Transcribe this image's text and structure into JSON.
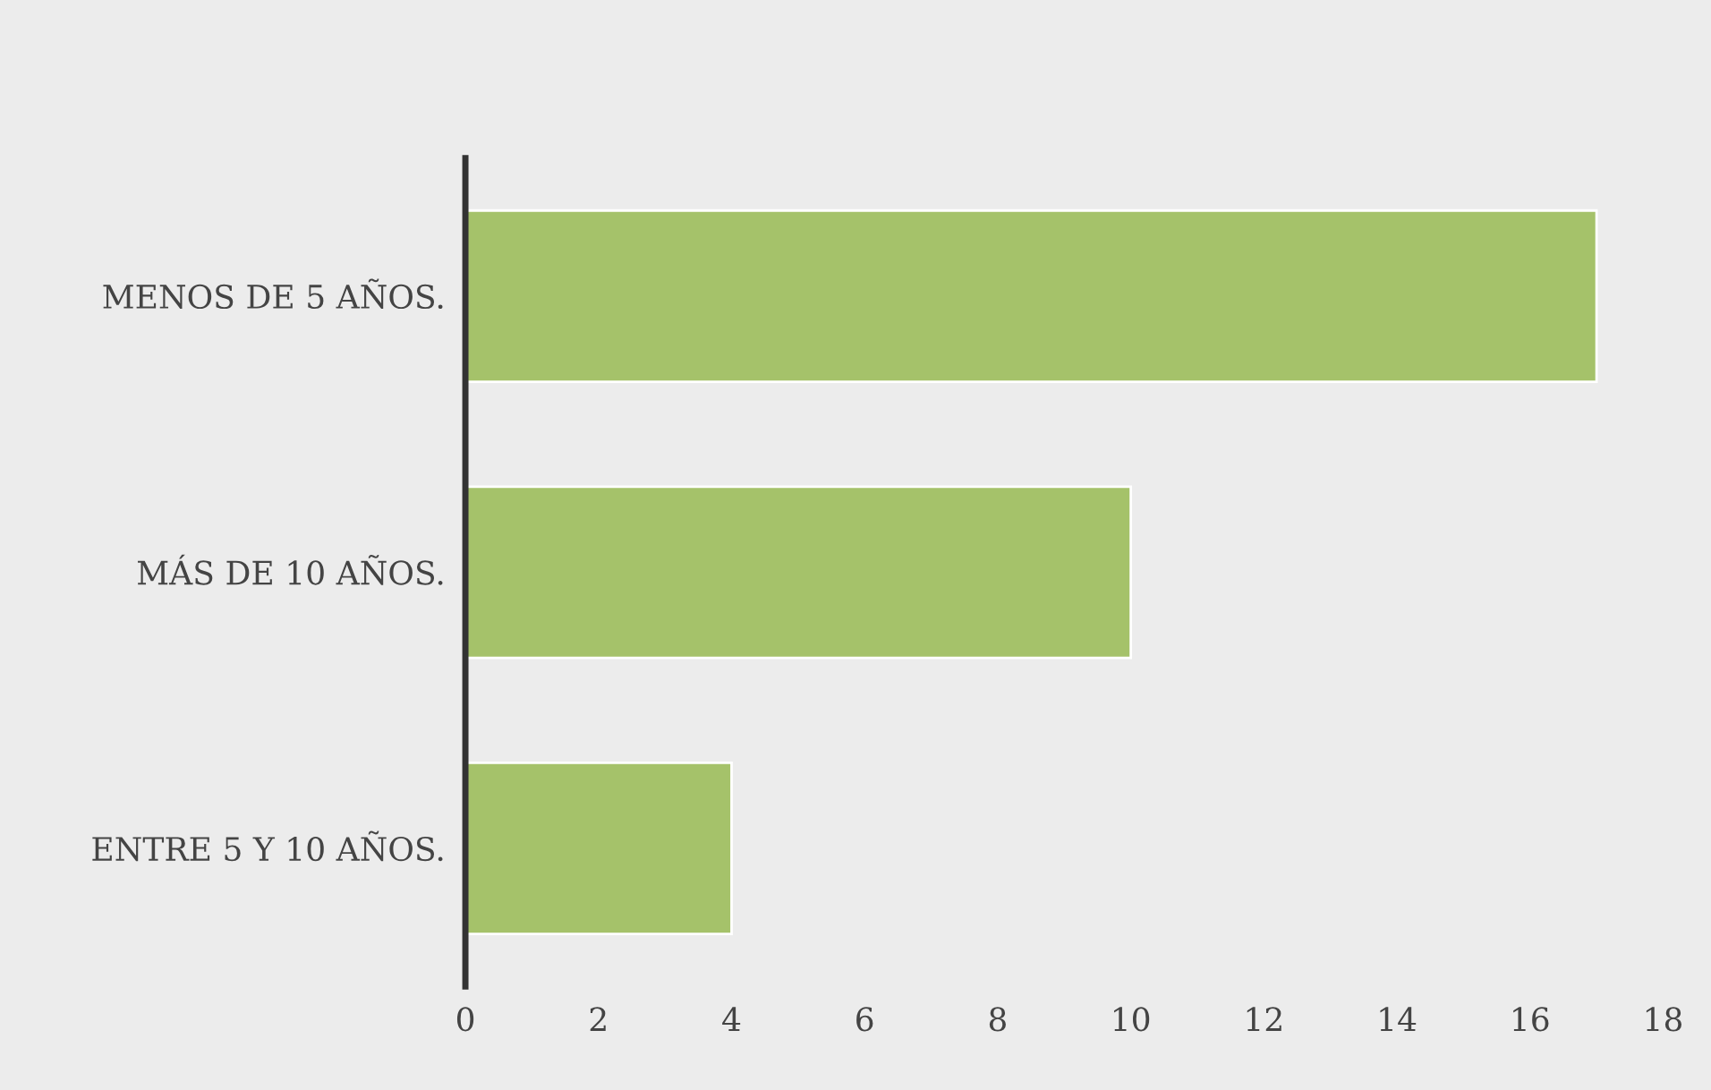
{
  "chart_data": {
    "type": "bar",
    "orientation": "horizontal",
    "categories": [
      "MENOS DE 5 AÑOS.",
      "MÁS DE 10 AÑOS.",
      "ENTRE 5 Y 10 AÑOS."
    ],
    "values": [
      17,
      10,
      4
    ],
    "color": "#a5c26a",
    "xlim": [
      0,
      18
    ],
    "xticks": [
      0,
      2,
      4,
      6,
      8,
      10,
      12,
      14,
      16,
      18
    ],
    "grid": false,
    "legend": false
  }
}
